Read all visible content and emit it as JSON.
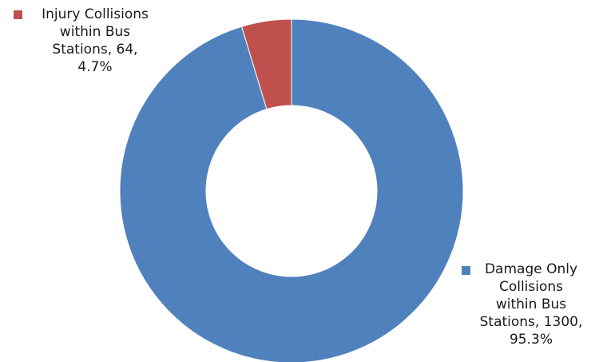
{
  "chart_data": {
    "type": "donut",
    "title": "",
    "slices": [
      {
        "name": "Damage Only Collisions within Bus Stations",
        "value": 1300,
        "percent": 95.3,
        "color": "#4F81BD",
        "label_lines": [
          "Damage Only",
          "Collisions",
          "within Bus",
          "Stations, 1300,",
          "95.3%"
        ]
      },
      {
        "name": "Injury Collisions within Bus Stations",
        "value": 64,
        "percent": 4.7,
        "color": "#C0504D",
        "label_lines": [
          "Injury Collisions",
          "within Bus",
          "Stations, 64,",
          "4.7%"
        ]
      }
    ],
    "legend": "none",
    "labels": "outside",
    "start_angle": "12 o'clock, clockwise"
  }
}
